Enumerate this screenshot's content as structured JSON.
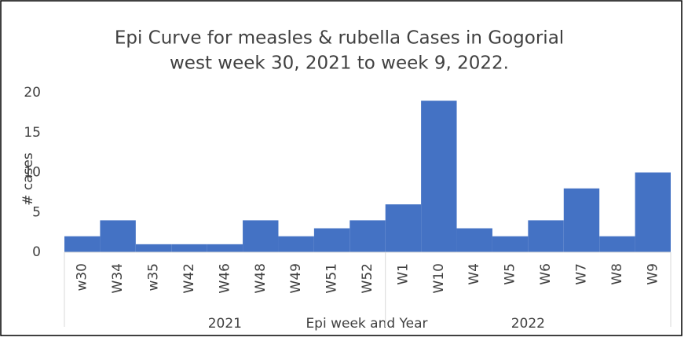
{
  "chart_data": {
    "type": "bar",
    "title": [
      "Epi Curve for measles & rubella Cases in Gogorial",
      "west week 30, 2021 to week 9, 2022."
    ],
    "x_label": "Epi week and Year",
    "y_label": "# cases",
    "categories": [
      "w30",
      "W34",
      "w35",
      "W42",
      "W46",
      "W48",
      "W49",
      "W51",
      "W52",
      "W1",
      "W10",
      "W4",
      "W5",
      "W6",
      "W7",
      "W8",
      "W9"
    ],
    "x_groups": [
      {
        "label": "2021",
        "count": 9
      },
      {
        "label": "2022",
        "count": 8
      }
    ],
    "values": [
      2,
      4,
      1,
      1,
      1,
      4,
      2,
      3,
      4,
      6,
      19,
      3,
      2,
      4,
      8,
      2,
      10
    ],
    "color": "#4472c4",
    "ylim": [
      0,
      20
    ],
    "yticks": [
      0,
      5,
      10,
      15,
      20
    ],
    "grid": false
  }
}
